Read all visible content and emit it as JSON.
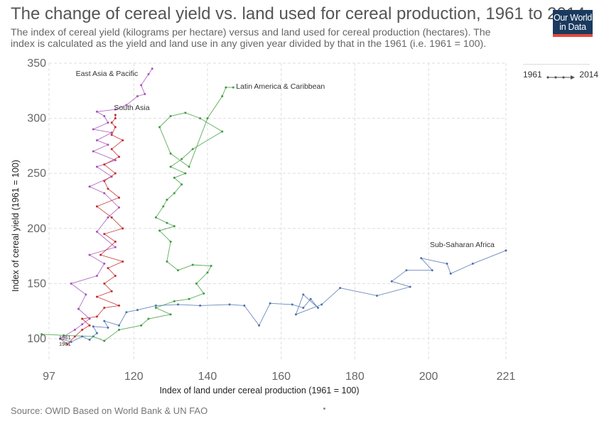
{
  "header": {
    "title": "The change of cereal yield vs. land used for cereal production, 1961 to 2014",
    "subtitle": "The index of cereal yield (kilograms per hectare) versus and land used for cereal production (hectares). The index is calculated as the yield and land use in any given year divided by that in the 1961 (i.e. 1961 = 100)."
  },
  "logo": {
    "line1": "Our World",
    "line2": "in Data",
    "bg_color": "#1a3a5f",
    "accent_color": "#e4493b"
  },
  "legend": {
    "start_year": "1961",
    "end_year": "2014"
  },
  "footer": {
    "source": "Source: OWID Based on World Bank & UN FAO"
  },
  "chart_data": {
    "type": "scatter",
    "xlabel": "Index of land under cereal production (1961 = 100)",
    "ylabel": "Index of cereal yield (1961 = 100)",
    "xlim": [
      97,
      221
    ],
    "ylim": [
      80,
      350
    ],
    "x_ticks": [
      97,
      120,
      140,
      160,
      180,
      200,
      221
    ],
    "y_ticks": [
      100,
      150,
      200,
      250,
      300,
      350
    ],
    "grid": true,
    "start_markers": [
      "1961",
      "1961"
    ],
    "series": [
      {
        "name": "East Asia & Pacific",
        "color": "#a652ba",
        "points": [
          [
            100,
            100
          ],
          [
            104,
            108
          ],
          [
            106,
            113
          ],
          [
            108,
            118
          ],
          [
            105,
            127
          ],
          [
            107,
            140
          ],
          [
            103,
            150
          ],
          [
            110,
            157
          ],
          [
            112,
            168
          ],
          [
            108,
            176
          ],
          [
            115,
            183
          ],
          [
            110,
            197
          ],
          [
            113,
            210
          ],
          [
            116,
            219
          ],
          [
            112,
            232
          ],
          [
            108,
            238
          ],
          [
            114,
            247
          ],
          [
            110,
            256
          ],
          [
            115,
            262
          ],
          [
            109,
            270
          ],
          [
            113,
            276
          ],
          [
            110,
            280
          ],
          [
            114,
            287
          ],
          [
            109,
            290
          ],
          [
            113,
            296
          ],
          [
            112,
            302
          ],
          [
            110,
            306
          ],
          [
            115,
            308
          ],
          [
            118,
            312
          ],
          [
            121,
            320
          ],
          [
            123,
            322
          ],
          [
            122,
            330
          ],
          [
            124,
            340
          ],
          [
            125,
            345
          ]
        ]
      },
      {
        "name": "South Asia",
        "color": "#c42b2b",
        "points": [
          [
            100,
            100
          ],
          [
            102,
            95
          ],
          [
            104,
            102
          ],
          [
            106,
            108
          ],
          [
            108,
            112
          ],
          [
            106,
            118
          ],
          [
            110,
            120
          ],
          [
            112,
            128
          ],
          [
            116,
            130
          ],
          [
            110,
            138
          ],
          [
            114,
            143
          ],
          [
            112,
            150
          ],
          [
            115,
            157
          ],
          [
            113,
            164
          ],
          [
            117,
            170
          ],
          [
            111,
            176
          ],
          [
            115,
            188
          ],
          [
            112,
            195
          ],
          [
            117,
            200
          ],
          [
            114,
            210
          ],
          [
            110,
            220
          ],
          [
            116,
            228
          ],
          [
            113,
            236
          ],
          [
            112,
            243
          ],
          [
            115,
            250
          ],
          [
            112,
            258
          ],
          [
            116,
            265
          ],
          [
            114,
            272
          ],
          [
            117,
            280
          ],
          [
            114,
            285
          ],
          [
            115,
            292
          ],
          [
            114,
            296
          ],
          [
            115,
            300
          ],
          [
            115,
            303
          ]
        ]
      },
      {
        "name": "Latin America & Caribbean",
        "color": "#3f9c3f",
        "points": [
          [
            95,
            104
          ],
          [
            101,
            103
          ],
          [
            109,
            102
          ],
          [
            112,
            98
          ],
          [
            116,
            108
          ],
          [
            122,
            112
          ],
          [
            124,
            118
          ],
          [
            130,
            122
          ],
          [
            126,
            128
          ],
          [
            131,
            134
          ],
          [
            135,
            136
          ],
          [
            139,
            141
          ],
          [
            137,
            150
          ],
          [
            140,
            160
          ],
          [
            141,
            166
          ],
          [
            136,
            167
          ],
          [
            132,
            162
          ],
          [
            129,
            170
          ],
          [
            130,
            188
          ],
          [
            127,
            198
          ],
          [
            131,
            202
          ],
          [
            129,
            205
          ],
          [
            126,
            210
          ],
          [
            128,
            220
          ],
          [
            129,
            226
          ],
          [
            131,
            232
          ],
          [
            133,
            240
          ],
          [
            131,
            246
          ],
          [
            134,
            250
          ],
          [
            130,
            256
          ],
          [
            133,
            263
          ],
          [
            136,
            272
          ],
          [
            144,
            288
          ],
          [
            138,
            300
          ],
          [
            134,
            305
          ],
          [
            130,
            302
          ],
          [
            127,
            292
          ],
          [
            130,
            268
          ],
          [
            135,
            256
          ],
          [
            140,
            300
          ],
          [
            144,
            320
          ],
          [
            145,
            328
          ],
          [
            147,
            328
          ]
        ]
      },
      {
        "name": "Sub-Saharan Africa",
        "color": "#4c72b0",
        "points": [
          [
            100,
            100
          ],
          [
            103,
            97
          ],
          [
            106,
            102
          ],
          [
            108,
            99
          ],
          [
            110,
            105
          ],
          [
            109,
            111
          ],
          [
            113,
            110
          ],
          [
            112,
            116
          ],
          [
            116,
            112
          ],
          [
            118,
            124
          ],
          [
            121,
            126
          ],
          [
            126,
            130
          ],
          [
            132,
            131
          ],
          [
            138,
            130
          ],
          [
            146,
            131
          ],
          [
            150,
            130
          ],
          [
            154,
            112
          ],
          [
            157,
            132
          ],
          [
            163,
            131
          ],
          [
            166,
            128
          ],
          [
            168,
            136
          ],
          [
            170,
            128
          ],
          [
            166,
            140
          ],
          [
            164,
            122
          ],
          [
            171,
            131
          ],
          [
            176,
            146
          ],
          [
            186,
            139
          ],
          [
            195,
            147
          ],
          [
            190,
            152
          ],
          [
            194,
            162
          ],
          [
            201,
            162
          ],
          [
            198,
            173
          ],
          [
            205,
            168
          ],
          [
            206,
            159
          ],
          [
            212,
            168
          ],
          [
            221,
            180
          ]
        ]
      }
    ]
  }
}
